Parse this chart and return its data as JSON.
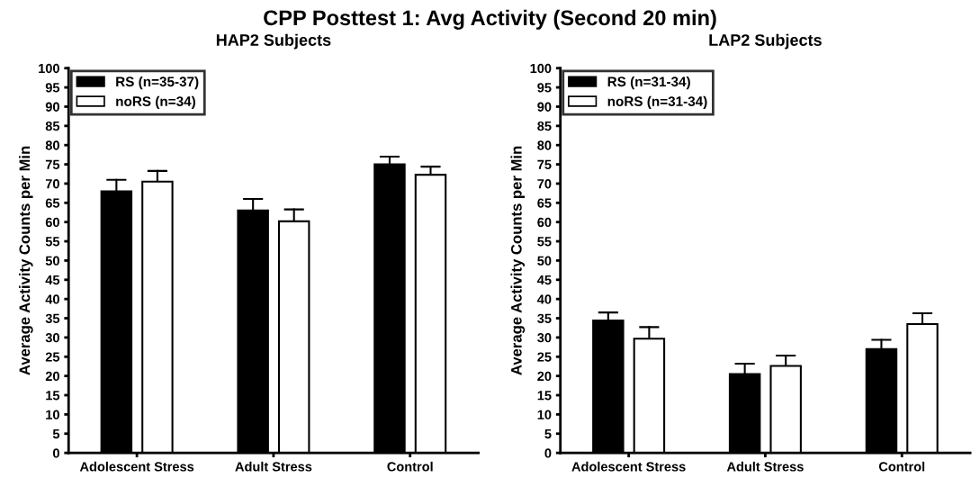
{
  "chart_data": [
    {
      "type": "bar",
      "title": "HAP2 Subjects",
      "annotations": [
        "CPP Posttest 1: Avg Activity (Second 20 min)"
      ],
      "ylabel": "Average Activity Counts per Min",
      "categories": [
        "Adolescent Stress",
        "Adult Stress",
        "Control"
      ],
      "ylim": [
        0,
        100
      ],
      "yticks": [
        0,
        5,
        10,
        15,
        20,
        25,
        30,
        35,
        40,
        45,
        50,
        55,
        60,
        65,
        70,
        75,
        80,
        85,
        90,
        95,
        100
      ],
      "grid": false,
      "legend": "top left",
      "series": [
        {
          "name": "RS (n=35-37)",
          "color": "#000000",
          "values": [
            68,
            63,
            75
          ],
          "errors": [
            [
              68,
              71
            ],
            [
              63,
              66
            ],
            [
              75,
              77
            ]
          ]
        },
        {
          "name": "noRS (n=34)",
          "color": "#ffffff",
          "values": [
            70.5,
            60.2,
            72.3
          ],
          "errors": [
            [
              70.5,
              73.3
            ],
            [
              60.2,
              63.3
            ],
            [
              72.3,
              74.4
            ]
          ]
        }
      ]
    },
    {
      "type": "bar",
      "title": "LAP2 Subjects",
      "ylabel": "Average Activity Counts per Min",
      "categories": [
        "Adolescent Stress",
        "Adult Stress",
        "Control"
      ],
      "ylim": [
        0,
        100
      ],
      "yticks": [
        0,
        5,
        10,
        15,
        20,
        25,
        30,
        35,
        40,
        45,
        50,
        55,
        60,
        65,
        70,
        75,
        80,
        85,
        90,
        95,
        100
      ],
      "grid": false,
      "legend": "top left",
      "series": [
        {
          "name": "RS (n=31-34)",
          "color": "#000000",
          "values": [
            34.4,
            20.5,
            27
          ],
          "errors": [
            [
              34.4,
              36.5
            ],
            [
              20.5,
              23.2
            ],
            [
              27,
              29.4
            ]
          ]
        },
        {
          "name": "noRS (n=31-34)",
          "color": "#ffffff",
          "values": [
            29.7,
            22.6,
            33.5
          ],
          "errors": [
            [
              29.7,
              32.7
            ],
            [
              22.6,
              25.3
            ],
            [
              33.5,
              36.3
            ]
          ]
        }
      ]
    }
  ]
}
